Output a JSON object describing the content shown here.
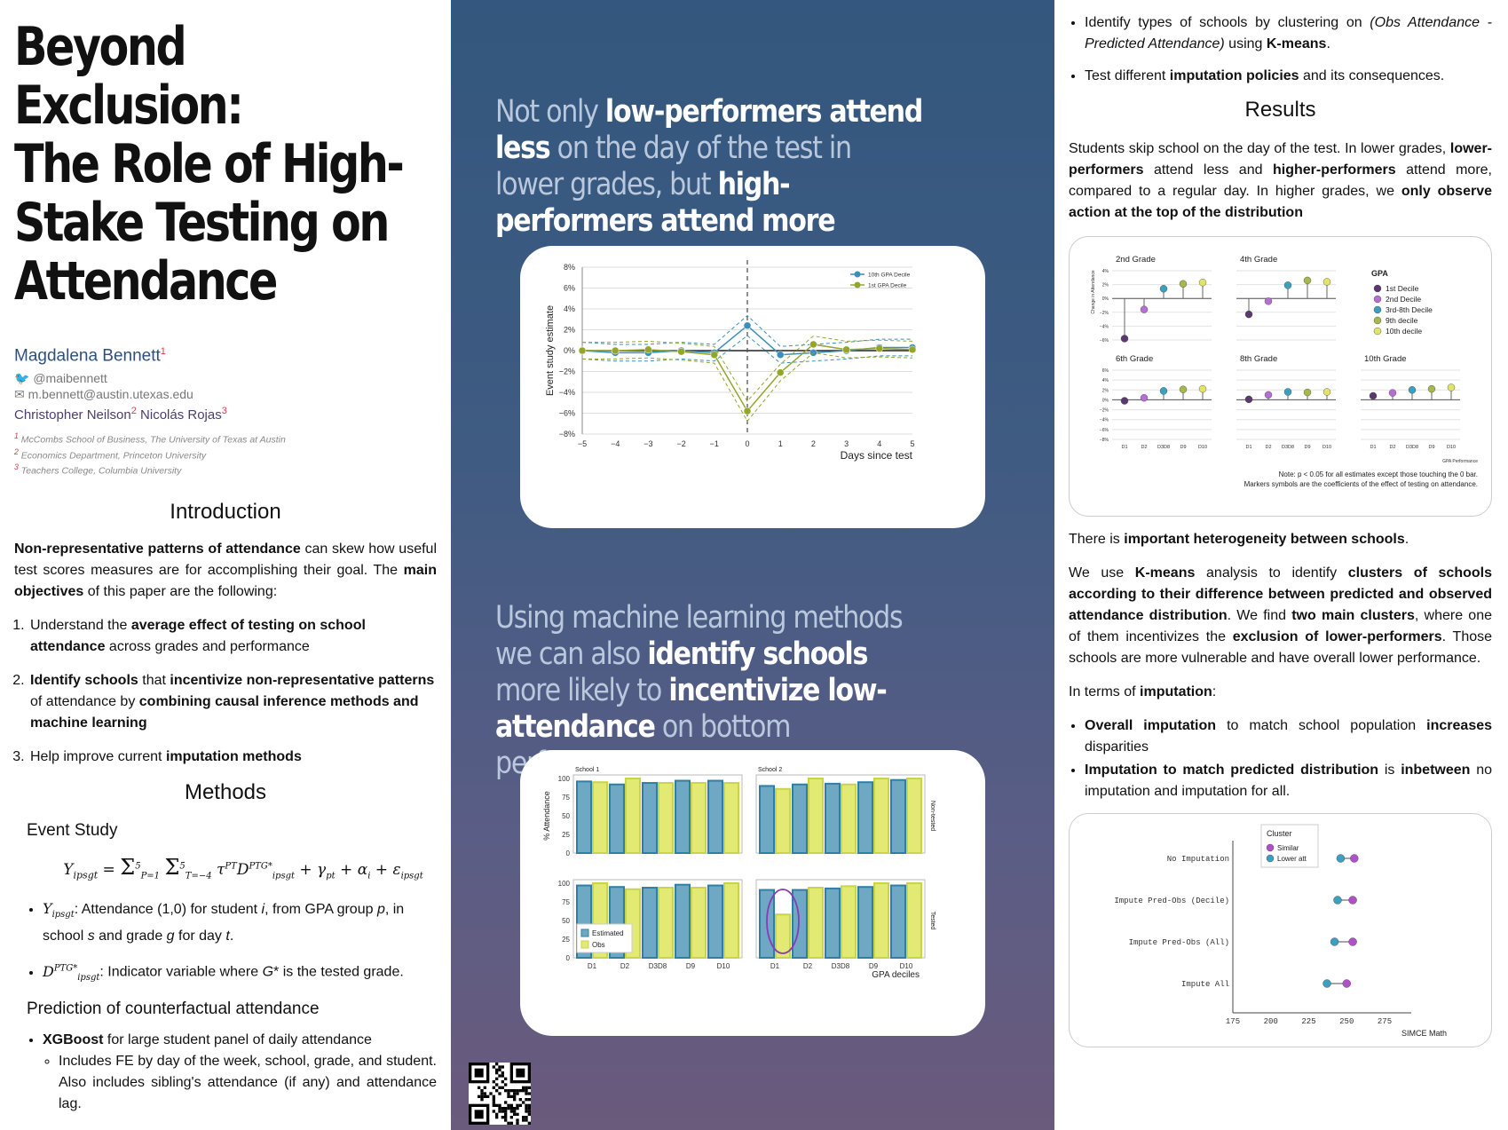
{
  "title_lines": [
    "Beyond Exclusion:",
    "The Role of High-",
    "Stake Testing on",
    "Attendance"
  ],
  "author": {
    "name": "Magdalena Bennett",
    "sup": "1",
    "twitter": "@maibennett",
    "email": "m.bennett@austin.utexas.edu"
  },
  "coauthors": [
    {
      "name": "Christopher Neilson",
      "sup": "2"
    },
    {
      "name": "Nicolás Rojas",
      "sup": "3"
    }
  ],
  "affiliations": [
    {
      "sup": "1",
      "text": "McCombs School of Business, The University of Texas at Austin"
    },
    {
      "sup": "2",
      "text": "Economics Department, Princeton University"
    },
    {
      "sup": "3",
      "text": "Teachers College, Columbia University"
    }
  ],
  "intro": {
    "heading": "Introduction",
    "p1": [
      "Non-representative patterns of attendance",
      " can skew how useful test scores measures are for accomplishing their goal. The ",
      "main objectives",
      " of this paper are the following:"
    ],
    "items": [
      [
        "Understand the ",
        "average effect of testing on school attendance",
        " across grades and performance"
      ],
      [
        "Identify schools",
        " that ",
        "incentivize non-representative patterns",
        " of attendance by ",
        "combining causal inference methods and machine learning",
        ""
      ],
      [
        "Help improve current ",
        "imputation methods",
        ""
      ]
    ]
  },
  "methods": {
    "heading": "Methods",
    "event_study": "Event Study",
    "b1_text": ": Attendance (1,0) for student ",
    "b1_rest": ", from GPA group ",
    "b1_school": "in school ",
    "b1_grade": " and grade ",
    "b1_day": " for day ",
    "b2_text": ": Indicator variable where ",
    "b2_rest": " is the tested grade.",
    "prediction": "Prediction of counterfactual attendance",
    "xgb_bold": "XGBoost",
    "xgb_text": " for large student panel of daily attendance",
    "xgb_sub": "Includes FE by day of the week, school, grade, and student. Also includes sibling's attendance (if any) and attendance lag."
  },
  "mid": {
    "head1": [
      [
        "Not only ",
        false
      ],
      [
        "low-performers attend less",
        true
      ],
      [
        " on the day of the test in lower grades, but ",
        false
      ],
      [
        "high-performers attend more",
        true
      ]
    ],
    "head2": [
      [
        "Using machine learning methods we can also ",
        false
      ],
      [
        "identify schools",
        true
      ],
      [
        " more likely to ",
        false
      ],
      [
        "incentivize low-attendance",
        true
      ],
      [
        " on bottom performers",
        false
      ]
    ]
  },
  "right": {
    "bullet1": [
      "Identify types of schools by clustering on ",
      "(Obs Attendance - Predicted Attendance)",
      " using ",
      "K-means",
      "."
    ],
    "bullet2": [
      "Test different ",
      "imputation policies",
      " and its consequences."
    ],
    "results_heading": "Results",
    "p1": [
      "Students skip school on the day of the test. In lower grades, ",
      "lower-performers",
      " attend less and ",
      "higher-performers",
      " attend more, compared to a regular day. In higher grades, we ",
      "only observe action at the top of the distribution",
      ""
    ],
    "p2": [
      "There is ",
      "important heterogeneity between schools",
      "."
    ],
    "p3": [
      "We use ",
      "K-means",
      " analysis to identify ",
      "clusters of schools according to their difference between predicted and observed attendance distribution",
      ". We find ",
      "two main clusters",
      ", where one of them incentivizes the ",
      "exclusion of lower-performers",
      ". Those schools are more vulnerable and have overall lower performance."
    ],
    "p4": [
      "In terms of ",
      "imputation",
      ":"
    ],
    "bullets": [
      [
        "Overall imputation",
        " to match school population ",
        "increases",
        " disparities"
      ],
      [
        "Imputation to match predicted distribution",
        " is ",
        "inbetween",
        " no imputation and imputation for all."
      ]
    ]
  },
  "chart_data": [
    {
      "type": "line",
      "xlabel": "Days since test",
      "ylabel": "Event study estimate",
      "x": [
        -5,
        -4,
        -3,
        -2,
        -1,
        0,
        1,
        2,
        3,
        4,
        5
      ],
      "x_ticks": [
        "−5",
        "−4",
        "−3",
        "−2",
        "−1",
        "0",
        "1",
        "2",
        "3",
        "4",
        "5"
      ],
      "ylim": [
        -8,
        8
      ],
      "y_ticks": [
        "8%",
        "6%",
        "4%",
        "2%",
        "0%",
        "−2%",
        "−4%",
        "−6%",
        "−8%"
      ],
      "colors": {
        "top": "#3c8fb8",
        "bottom": "#94a62a"
      },
      "series": [
        {
          "name": "10th GPA Decile",
          "values": [
            0,
            -0.2,
            -0.2,
            0,
            -0.2,
            2.4,
            -0.4,
            -0.2,
            0,
            0.3,
            0.3
          ]
        },
        {
          "name": "1st GPA Decile",
          "values": [
            0,
            0,
            0.1,
            -0.1,
            -0.4,
            -5.8,
            -2.1,
            0.6,
            0.1,
            0.2,
            0.1
          ]
        }
      ]
    },
    {
      "type": "scatter",
      "panels": [
        "2nd Grade",
        "4th Grade",
        "6th Grade",
        "8th Grade",
        "10th Grade"
      ],
      "ylabel": "Change in Attendance",
      "legend_title": "GPA",
      "categories": [
        "D1",
        "D2",
        "D3D8",
        "D9",
        "D10"
      ],
      "legend": [
        "1st Decile",
        "2nd Decile",
        "3rd-8th Decile",
        "9th decile",
        "10th decile"
      ],
      "colors": [
        "#5a3a6e",
        "#b86cd6",
        "#3c9fc0",
        "#a6b84a",
        "#e2e46a"
      ],
      "y_ticks_top": [
        "4%",
        "2%",
        "0%",
        "−2%",
        "−4%",
        "−6%"
      ],
      "y_ticks_bottom": [
        "6%",
        "4%",
        "2%",
        "0%",
        "−2%",
        "−4%",
        "−6%",
        "−8%"
      ],
      "values": {
        "2nd Grade": [
          -5.8,
          -1.6,
          1.4,
          2.1,
          2.3
        ],
        "4th Grade": [
          -2.3,
          -0.4,
          1.9,
          2.6,
          2.4
        ],
        "6th Grade": [
          -0.2,
          0.4,
          1.8,
          2.1,
          2.2
        ],
        "8th Grade": [
          0.1,
          1.0,
          1.6,
          1.5,
          1.6
        ],
        "10th Grade": [
          0.8,
          1.4,
          2.0,
          2.2,
          2.5
        ]
      },
      "xlabel": "GPA Performance",
      "note1": "Note: p < 0.05 for all estimates except those touching the 0 bar.",
      "note2": "Markers symbols are the coefficients of the effect of testing on attendance."
    },
    {
      "type": "bar",
      "panels": [
        "School 1",
        "School 2"
      ],
      "rows": [
        "Non-tested",
        "Tested"
      ],
      "categories": [
        "D1",
        "D2",
        "D3D8",
        "D9",
        "D10"
      ],
      "ylabel": "% Attendance",
      "xlabel": "GPA deciles",
      "y_ticks": [
        "100",
        "75",
        "50",
        "25",
        "0"
      ],
      "ylim": [
        0,
        100
      ],
      "colors": {
        "Estimated": "#6ea8c2",
        "Obs": "#e2ea74"
      },
      "series": [
        {
          "name": "Estimated",
          "values": {
            "School 1 Non-tested": [
              96,
              92,
              94,
              97,
              97
            ],
            "School 2 Non-tested": [
              90,
              92,
              93,
              95,
              98
            ],
            "School 1 Tested": [
              97,
              95,
              94,
              98,
              97
            ],
            "School 2 Tested": [
              91,
              91,
              93,
              95,
              97
            ]
          }
        },
        {
          "name": "Obs",
          "values": {
            "School 1 Non-tested": [
              95,
              100,
              94,
              94,
              94
            ],
            "School 2 Non-tested": [
              86,
              100,
              92,
              100,
              100
            ],
            "School 1 Tested": [
              100,
              92,
              94,
              94,
              100
            ],
            "School 2 Tested": [
              58,
              94,
              96,
              100,
              100
            ]
          }
        }
      ]
    },
    {
      "type": "scatter",
      "legend_title": "Cluster",
      "xlabel": "SIMCE Math",
      "categories": [
        "No Imputation",
        "Impute Pred-Obs (Decile)",
        "Impute Pred-Obs (All)",
        "Impute All"
      ],
      "xlim": [
        175,
        275
      ],
      "x_ticks": [
        "175",
        "200",
        "225",
        "250",
        "275"
      ],
      "colors": {
        "Similar": "#b050c8",
        "Lower att": "#3c9fc0"
      },
      "series": [
        {
          "name": "Similar",
          "values": [
            255,
            254,
            254,
            250
          ]
        },
        {
          "name": "Lower att",
          "values": [
            246,
            244,
            242,
            237
          ]
        }
      ]
    }
  ]
}
